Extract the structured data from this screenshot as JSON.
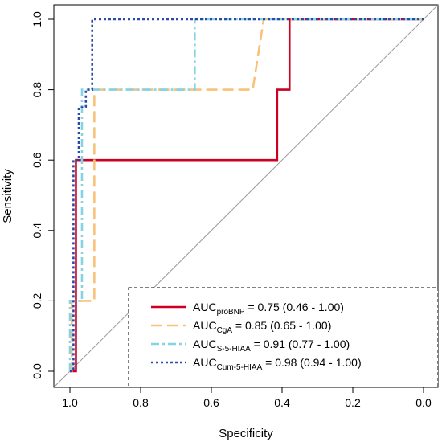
{
  "chart_data": {
    "type": "line",
    "title": "",
    "xlabel": "Specificity",
    "ylabel": "Sensitivity",
    "xlim": [
      1.0,
      0.0
    ],
    "ylim": [
      0.0,
      1.0
    ],
    "x_reversed": true,
    "x_ticks": [
      "1.0",
      "0.8",
      "0.6",
      "0.4",
      "0.2",
      "0.0"
    ],
    "y_ticks": [
      "0.0",
      "0.2",
      "0.4",
      "0.6",
      "0.8",
      "1.0"
    ],
    "grid": false,
    "legend_position": "bottom-right",
    "diagonal_reference_line": true,
    "series": [
      {
        "label_main": "AUC",
        "label_sub": "proBNP",
        "label_rest": " = 0.75 (0.46 - 1.00)",
        "color": "#cc0022",
        "line_style": "solid",
        "points": [
          [
            1.0,
            0.0
          ],
          [
            0.983,
            0.0
          ],
          [
            0.983,
            0.6
          ],
          [
            0.414,
            0.6
          ],
          [
            0.414,
            0.8
          ],
          [
            0.379,
            0.8
          ],
          [
            0.379,
            1.0
          ],
          [
            0.0,
            1.0
          ]
        ]
      },
      {
        "label_main": "AUC",
        "label_sub": "CgA",
        "label_rest": " = 0.85 (0.65 - 1.00)",
        "color": "#f7c27a",
        "line_style": "longdash",
        "points": [
          [
            1.0,
            0.0
          ],
          [
            0.995,
            0.0
          ],
          [
            0.995,
            0.2
          ],
          [
            0.931,
            0.2
          ],
          [
            0.931,
            0.8
          ],
          [
            0.483,
            0.8
          ],
          [
            0.452,
            1.0
          ],
          [
            0.0,
            1.0
          ]
        ]
      },
      {
        "label_main": "AUC",
        "label_sub": "S-5-HIAA",
        "label_rest": " = 0.91 (0.77 - 1.00)",
        "color": "#86d3e6",
        "line_style": "dashdot",
        "points": [
          [
            1.0,
            0.0
          ],
          [
            1.0,
            0.2
          ],
          [
            0.966,
            0.2
          ],
          [
            0.966,
            0.8
          ],
          [
            0.647,
            0.8
          ],
          [
            0.647,
            1.0
          ],
          [
            0.0,
            1.0
          ]
        ]
      },
      {
        "label_main": "AUC",
        "label_sub": "Cum-5-HIAA",
        "label_rest": " = 0.98 (0.94 - 1.00)",
        "color": "#2b4aa8",
        "line_style": "dotted",
        "points": [
          [
            1.0,
            0.0
          ],
          [
            0.99,
            0.0
          ],
          [
            0.99,
            0.6
          ],
          [
            0.975,
            0.6
          ],
          [
            0.975,
            0.75
          ],
          [
            0.955,
            0.75
          ],
          [
            0.955,
            0.8
          ],
          [
            0.937,
            0.8
          ],
          [
            0.937,
            1.0
          ],
          [
            0.0,
            1.0
          ]
        ]
      }
    ]
  }
}
